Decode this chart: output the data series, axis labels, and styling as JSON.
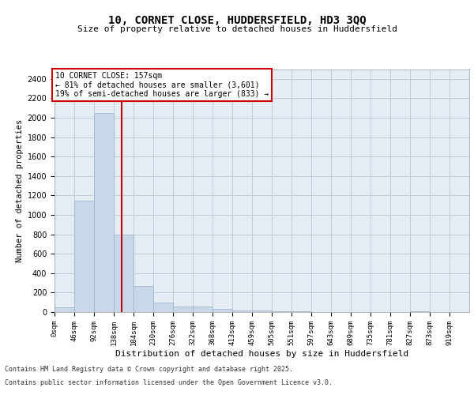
{
  "title1": "10, CORNET CLOSE, HUDDERSFIELD, HD3 3QQ",
  "title2": "Size of property relative to detached houses in Huddersfield",
  "xlabel": "Distribution of detached houses by size in Huddersfield",
  "ylabel": "Number of detached properties",
  "bar_color": "#c8d8e8",
  "bar_edgecolor": "#9ab0c8",
  "categories": [
    "0sqm",
    "46sqm",
    "92sqm",
    "138sqm",
    "184sqm",
    "230sqm",
    "276sqm",
    "322sqm",
    "368sqm",
    "413sqm",
    "459sqm",
    "505sqm",
    "551sqm",
    "597sqm",
    "643sqm",
    "689sqm",
    "735sqm",
    "781sqm",
    "827sqm",
    "873sqm",
    "919sqm"
  ],
  "values": [
    50,
    1150,
    2050,
    800,
    265,
    100,
    60,
    55,
    30,
    18,
    15,
    10,
    5,
    0,
    0,
    0,
    0,
    0,
    5,
    0,
    0
  ],
  "bin_edges": [
    0,
    46,
    92,
    138,
    184,
    230,
    276,
    322,
    368,
    413,
    459,
    505,
    551,
    597,
    643,
    689,
    735,
    781,
    827,
    873,
    919,
    965
  ],
  "property_size": 157,
  "annotation_line1": "10 CORNET CLOSE: 157sqm",
  "annotation_line2": "← 81% of detached houses are smaller (3,601)",
  "annotation_line3": "19% of semi-detached houses are larger (833) →",
  "annotation_box_color": "#ffffff",
  "annotation_edge_color": "#cc0000",
  "vline_color": "#cc0000",
  "grid_color": "#c0ccd8",
  "bg_color": "#e4ecf4",
  "footer1": "Contains HM Land Registry data © Crown copyright and database right 2025.",
  "footer2": "Contains public sector information licensed under the Open Government Licence v3.0.",
  "ylim": [
    0,
    2500
  ],
  "yticks": [
    0,
    200,
    400,
    600,
    800,
    1000,
    1200,
    1400,
    1600,
    1800,
    2000,
    2200,
    2400
  ]
}
